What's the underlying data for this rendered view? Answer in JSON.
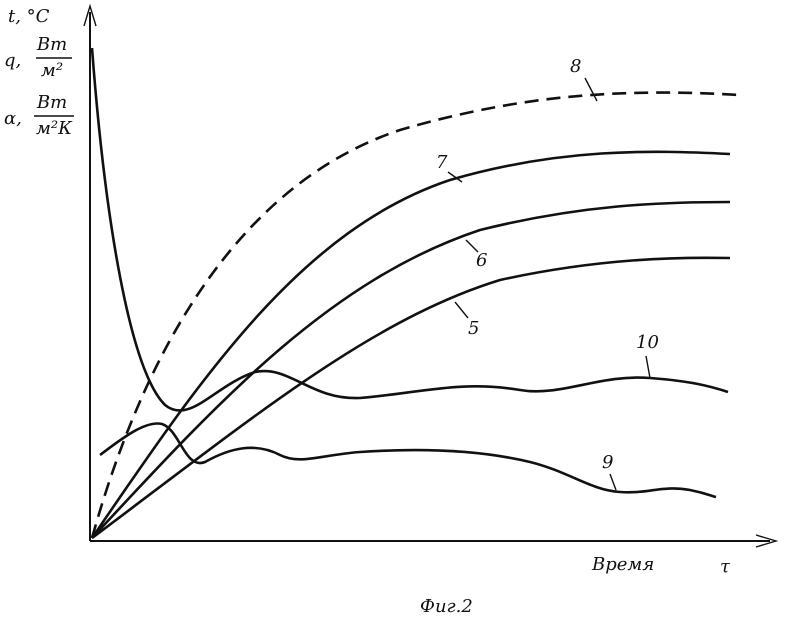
{
  "y_axis": {
    "t": "t, °C",
    "q": {
      "symbol": "q,",
      "numerator": "Вт",
      "denominator": "м²"
    },
    "alpha": {
      "symbol": "α,",
      "numerator": "Вт",
      "denominator": "м²К"
    }
  },
  "x_axis": {
    "label": "Время",
    "symbol": "τ"
  },
  "curves": [
    {
      "label": "5"
    },
    {
      "label": "6"
    },
    {
      "label": "7"
    },
    {
      "label": "8"
    },
    {
      "label": "9"
    },
    {
      "label": "10"
    }
  ],
  "caption": "Фиг.2"
}
